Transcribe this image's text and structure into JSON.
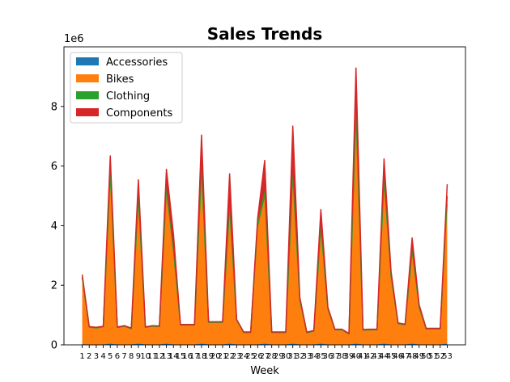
{
  "chart_data": {
    "type": "area",
    "stacked": true,
    "title": "Sales Trends",
    "xlabel": "Week",
    "ylabel": "",
    "y_offset_label": "1e6",
    "ylim": [
      0,
      10000000
    ],
    "yticks": [
      0,
      2,
      4,
      6,
      8
    ],
    "x": [
      1,
      2,
      3,
      4,
      5,
      6,
      7,
      8,
      9,
      10,
      11,
      12,
      13,
      14,
      15,
      16,
      17,
      18,
      19,
      20,
      21,
      22,
      23,
      24,
      25,
      26,
      27,
      28,
      29,
      30,
      31,
      32,
      33,
      34,
      35,
      36,
      37,
      38,
      39,
      40,
      41,
      42,
      43,
      44,
      45,
      46,
      47,
      48,
      49,
      50,
      51,
      52,
      53
    ],
    "legend_position": "top-left",
    "grid": false,
    "series": [
      {
        "name": "Accessories",
        "color": "#1f77b4",
        "values": [
          20000,
          15000,
          15000,
          15000,
          40000,
          15000,
          15000,
          15000,
          40000,
          15000,
          15000,
          15000,
          40000,
          15000,
          15000,
          15000,
          15000,
          40000,
          15000,
          15000,
          15000,
          40000,
          15000,
          15000,
          15000,
          15000,
          40000,
          15000,
          15000,
          15000,
          40000,
          15000,
          15000,
          15000,
          40000,
          15000,
          15000,
          15000,
          15000,
          40000,
          15000,
          15000,
          15000,
          40000,
          15000,
          15000,
          15000,
          40000,
          15000,
          15000,
          15000,
          15000,
          40000
        ]
      },
      {
        "name": "Bikes",
        "color": "#ff7f0e",
        "values": [
          2240000,
          570000,
          545000,
          580000,
          5500000,
          555000,
          600000,
          520000,
          4700000,
          560000,
          600000,
          590000,
          5000000,
          3000000,
          640000,
          640000,
          640000,
          5700000,
          730000,
          730000,
          730000,
          4400000,
          810000,
          390000,
          390000,
          3900000,
          4900000,
          390000,
          390000,
          390000,
          5500000,
          1450000,
          380000,
          440000,
          3700000,
          1150000,
          480000,
          480000,
          340000,
          7600000,
          470000,
          480000,
          480000,
          5300000,
          2200000,
          690000,
          650000,
          3000000,
          1200000,
          510000,
          510000,
          510000,
          4700000
        ]
      },
      {
        "name": "Clothing",
        "color": "#2ca02c",
        "values": [
          20000,
          10000,
          10000,
          10000,
          250000,
          10000,
          10000,
          10000,
          250000,
          10000,
          10000,
          10000,
          250000,
          200000,
          10000,
          10000,
          10000,
          250000,
          10000,
          10000,
          10000,
          250000,
          10000,
          10000,
          10000,
          200000,
          250000,
          10000,
          10000,
          10000,
          250000,
          50000,
          10000,
          10000,
          250000,
          50000,
          10000,
          10000,
          10000,
          300000,
          10000,
          10000,
          10000,
          250000,
          100000,
          10000,
          10000,
          150000,
          50000,
          10000,
          10000,
          10000,
          250000
        ]
      },
      {
        "name": "Components",
        "color": "#d62728",
        "values": [
          80000,
          20000,
          20000,
          20000,
          550000,
          20000,
          20000,
          20000,
          550000,
          20000,
          20000,
          20000,
          600000,
          500000,
          20000,
          20000,
          20000,
          1050000,
          20000,
          20000,
          20000,
          1050000,
          20000,
          20000,
          20000,
          150000,
          1000000,
          20000,
          20000,
          20000,
          1550000,
          80000,
          20000,
          20000,
          550000,
          50000,
          20000,
          20000,
          20000,
          1350000,
          20000,
          20000,
          20000,
          650000,
          150000,
          20000,
          20000,
          400000,
          80000,
          20000,
          20000,
          20000,
          400000
        ]
      }
    ]
  }
}
